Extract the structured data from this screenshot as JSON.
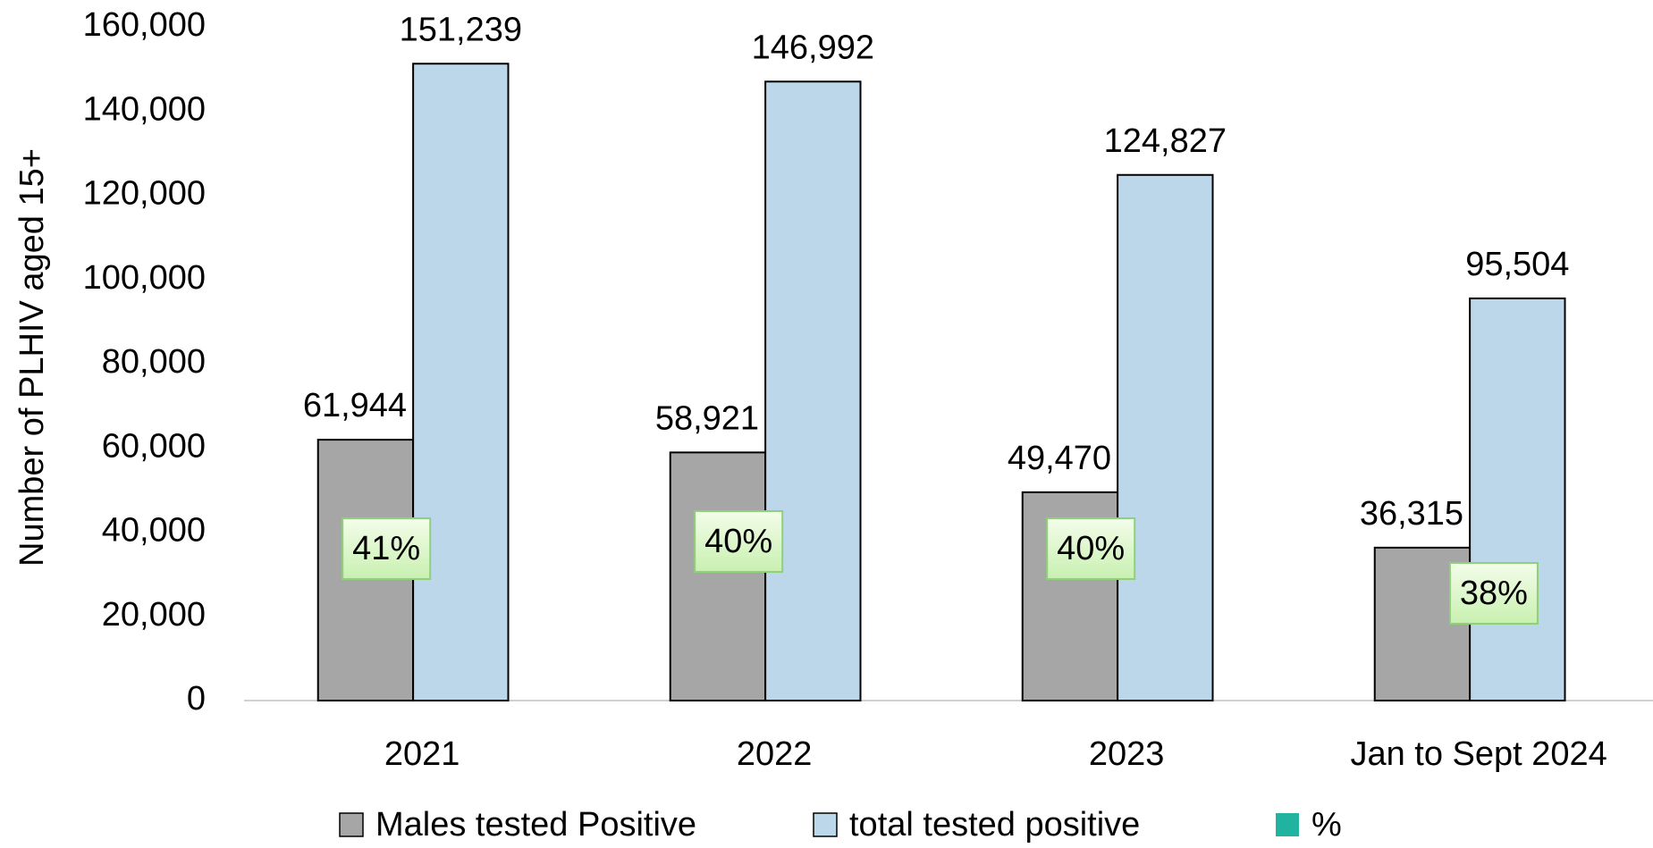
{
  "chart_data": {
    "type": "bar",
    "y_label": "Number of PLHIV aged 15+",
    "categories": [
      "2021",
      "2022",
      "2023",
      "Jan to Sept 2024"
    ],
    "series": [
      {
        "name": "Males tested Positive",
        "color": "#a6a6a6",
        "values": [
          61944,
          58921,
          49470,
          36315
        ],
        "value_labels": [
          "61,944",
          "58,921",
          "49,470",
          "36,315"
        ]
      },
      {
        "name": "total tested positive",
        "color": "#bcd7ea",
        "values": [
          151239,
          146992,
          124827,
          95504
        ],
        "value_labels": [
          "151,239",
          "146,992",
          "124,827",
          "95,504"
        ]
      },
      {
        "name": "%",
        "color": "#1fb3a0",
        "values": [
          41,
          40,
          40,
          38
        ],
        "value_labels": [
          "41%",
          "40%",
          "40%",
          "38%"
        ]
      }
    ],
    "ylim": [
      0,
      160000
    ],
    "yticks": [
      0,
      {
        "value": 20000,
        "label": "20,000"
      },
      {
        "value": 40000,
        "label": "40,000"
      },
      {
        "value": 60000,
        "label": "60,000"
      },
      {
        "value": 80000,
        "label": "80,000"
      },
      {
        "value": 100000,
        "label": "100,000"
      },
      {
        "value": 120000,
        "label": "120,000"
      },
      {
        "value": 140000,
        "label": "140,000"
      },
      {
        "value": 160000,
        "label": "160,000"
      }
    ],
    "legend": "bottom"
  }
}
